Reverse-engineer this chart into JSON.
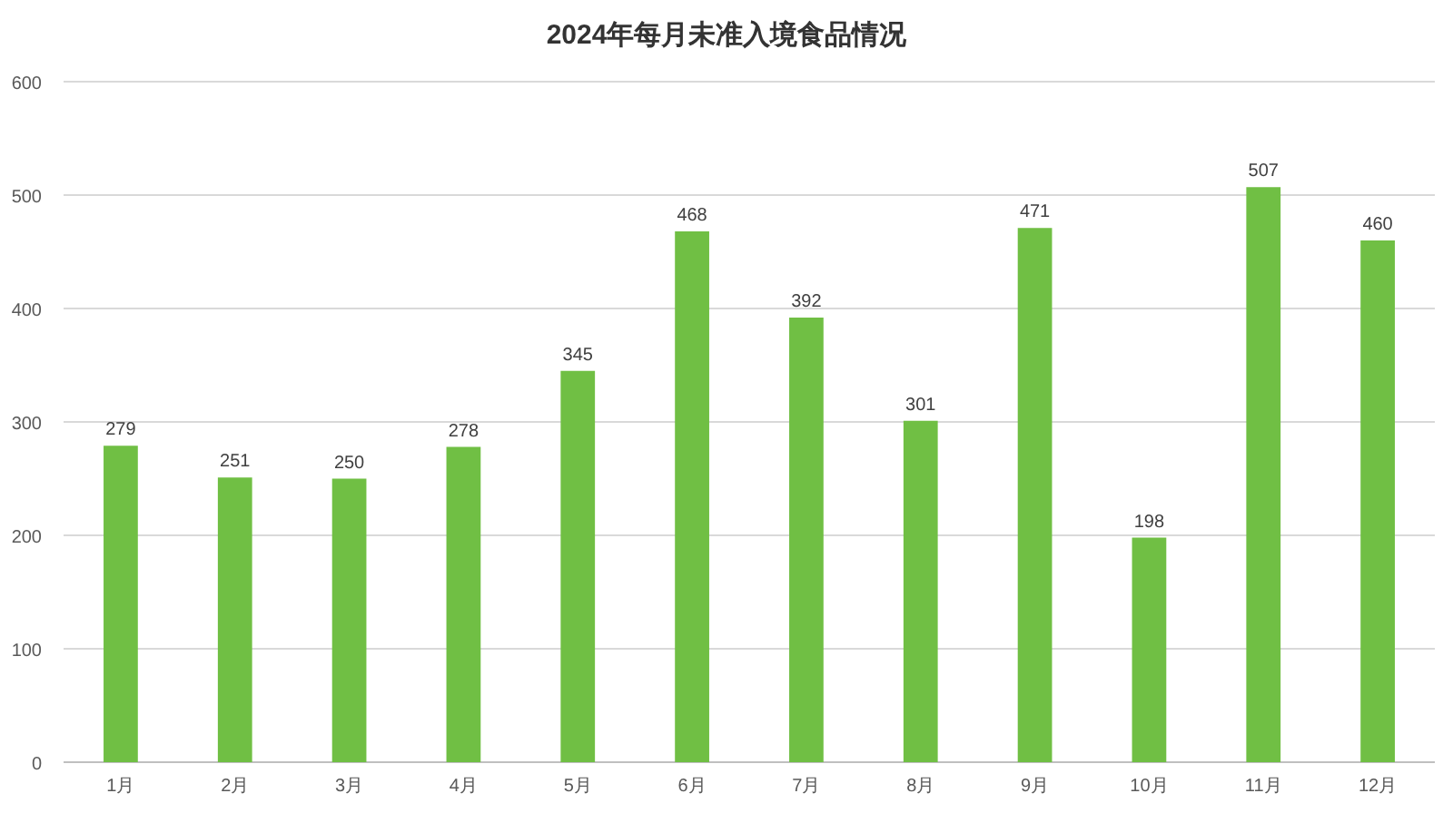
{
  "chart_data": {
    "type": "bar",
    "title": "2024年每月未准入境食品情况",
    "categories": [
      "1月",
      "2月",
      "3月",
      "4月",
      "5月",
      "6月",
      "7月",
      "8月",
      "9月",
      "10月",
      "11月",
      "12月"
    ],
    "values": [
      279,
      251,
      250,
      278,
      345,
      468,
      392,
      301,
      471,
      198,
      507,
      460
    ],
    "color": "#70bf44",
    "ylim": [
      0,
      600
    ],
    "yticks": [
      0,
      100,
      200,
      300,
      400,
      500,
      600
    ],
    "grid": "y",
    "data_labels": true
  }
}
